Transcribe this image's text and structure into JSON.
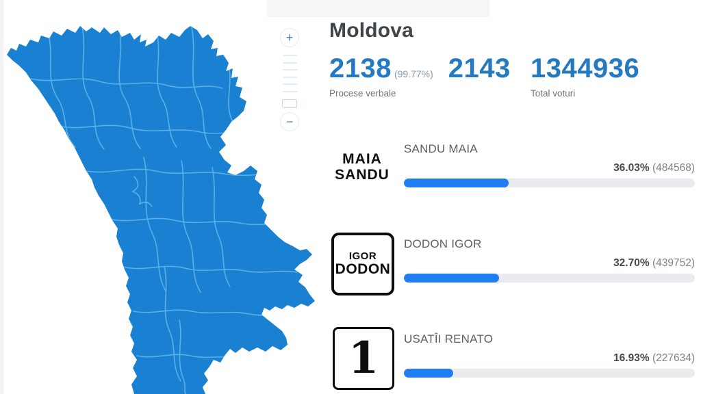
{
  "header": {
    "title": "Moldova"
  },
  "stats": {
    "processed": "2138",
    "processed_pct": "(99.77%)",
    "total_stations": "2143",
    "processed_label": "Procese verbale",
    "total_votes": "1344936",
    "total_votes_label": "Total voturi"
  },
  "zoom_controls": {
    "zoom_in_label": "+",
    "zoom_out_label": "−"
  },
  "map": {
    "country": "Moldova",
    "fill_color": "#1a80d2",
    "district_border_color": "#5db3e8"
  },
  "colors": {
    "accent_number_blue": "#2379c2",
    "bar_fill_blue": "#1e7ef2",
    "bar_track_gray": "#e9ebee",
    "title_gray": "#3f444a"
  },
  "candidates": [
    {
      "logo_line1": "MAIA",
      "logo_line2": "SANDU",
      "name": "SANDU MAIA",
      "percent": "36.03%",
      "votes": "(484568)",
      "bar_pct": 36.03
    },
    {
      "logo_line1": "IGOR",
      "logo_line2": "DODON",
      "name": "DODON IGOR",
      "percent": "32.70%",
      "votes": "(439752)",
      "bar_pct": 32.7
    },
    {
      "logo_number": "1",
      "name": "USATÎI RENATO",
      "percent": "16.93%",
      "votes": "(227634)",
      "bar_pct": 16.93
    }
  ]
}
